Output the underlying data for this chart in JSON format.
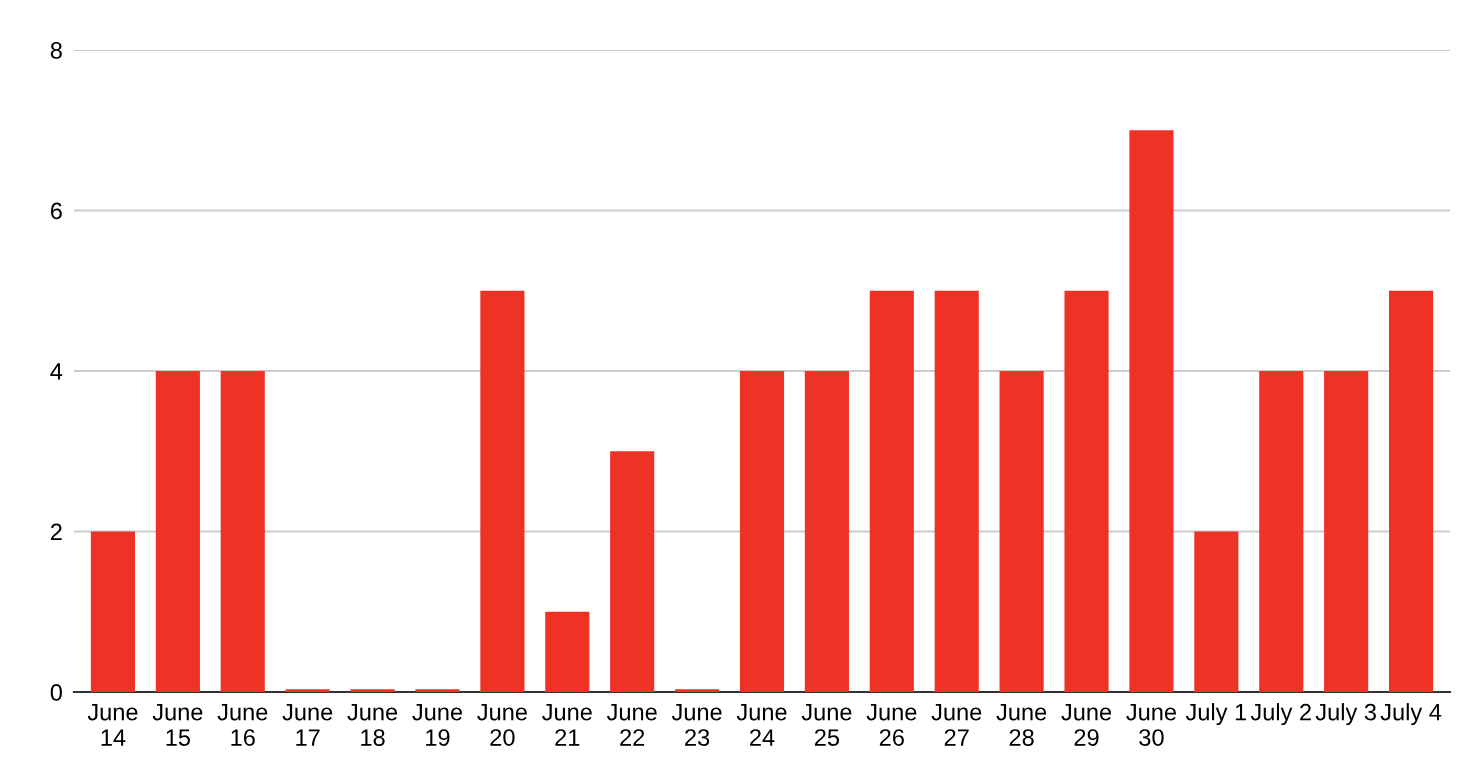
{
  "chart_data": {
    "type": "bar",
    "categories": [
      "June\n14",
      "June\n15",
      "June\n16",
      "June\n17",
      "June\n18",
      "June\n19",
      "June\n20",
      "June\n21",
      "June\n22",
      "June\n23",
      "June\n24",
      "June\n25",
      "June\n26",
      "June\n27",
      "June\n28",
      "June\n29",
      "June\n30",
      "July 1",
      "July 2",
      "July 3",
      "July 4"
    ],
    "values": [
      2,
      4,
      4,
      0,
      0,
      0,
      5,
      1,
      3,
      0,
      4,
      4,
      5,
      5,
      4,
      5,
      7,
      2,
      4,
      4,
      5
    ],
    "color": "#ee3326",
    "ylim": [
      0,
      8
    ],
    "yticks": [
      0,
      2,
      4,
      6,
      8
    ],
    "grid": "y"
  }
}
